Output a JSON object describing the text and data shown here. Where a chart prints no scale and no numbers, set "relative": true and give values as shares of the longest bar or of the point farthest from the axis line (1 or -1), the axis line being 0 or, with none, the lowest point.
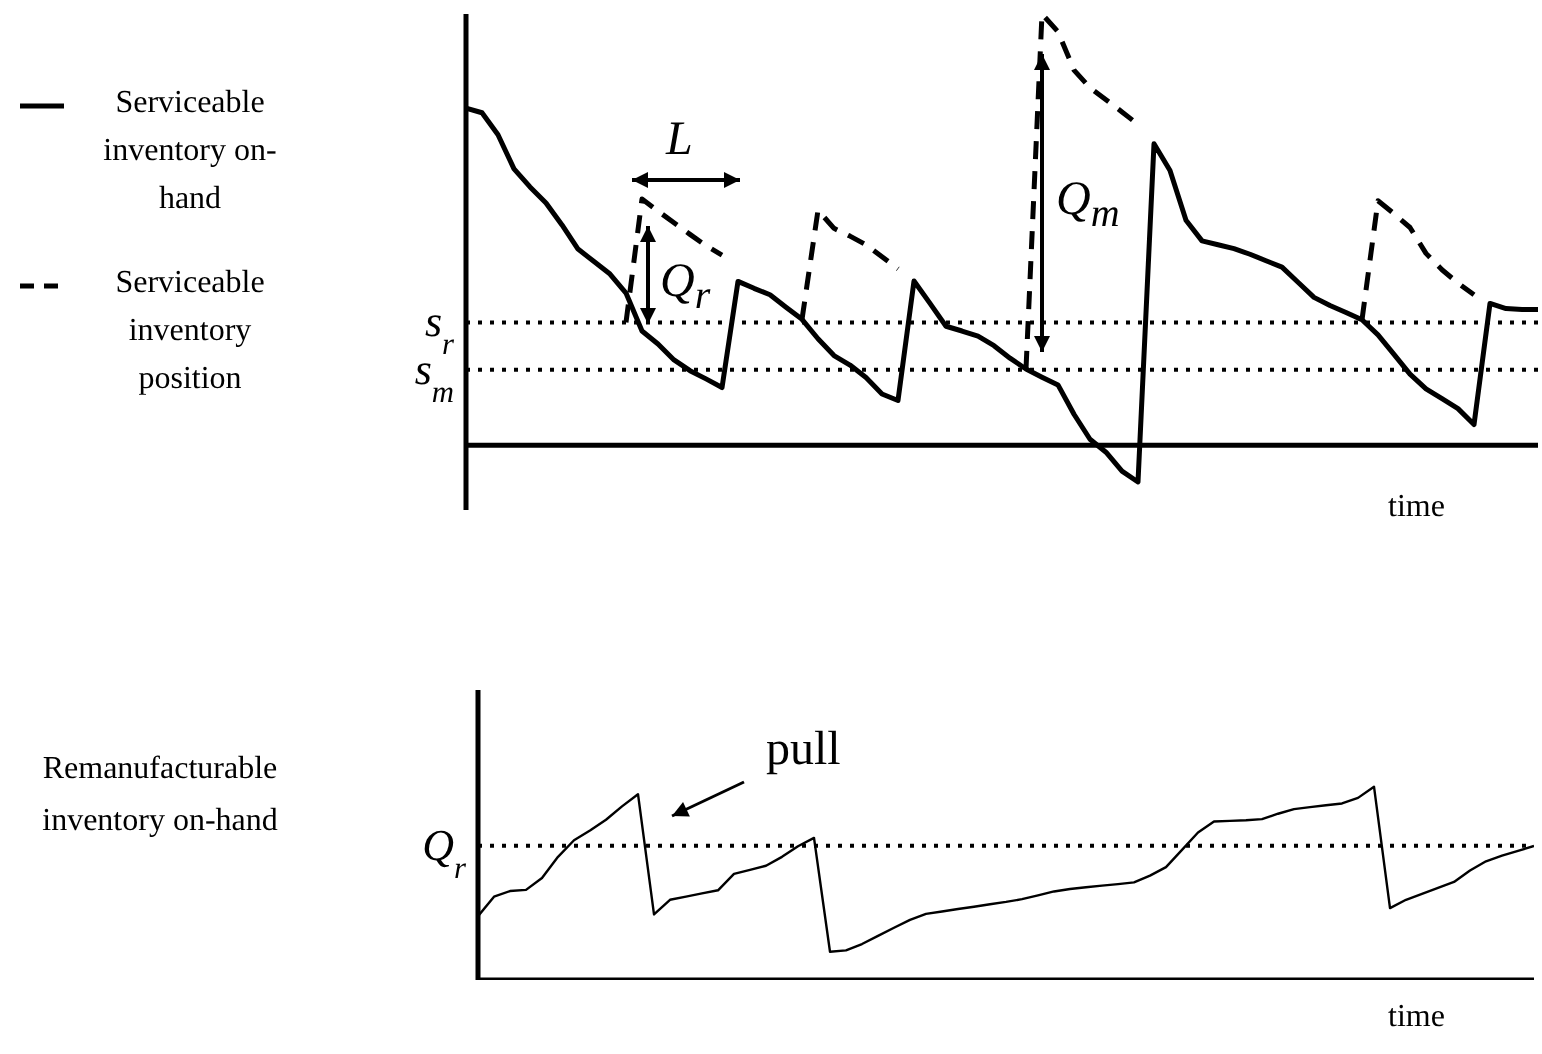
{
  "chart_data": [
    {
      "type": "line",
      "relative": true,
      "tick_labels": false,
      "xlabel": "time",
      "legend": "left",
      "marker": "none",
      "categories": [
        null,
        null,
        null,
        null,
        null,
        null,
        null,
        null,
        null,
        null,
        null,
        null,
        null,
        null,
        null,
        null,
        null,
        null,
        null,
        null,
        null,
        null,
        null,
        null,
        null,
        null,
        null,
        null,
        null,
        null,
        null,
        null,
        null,
        null,
        null,
        null,
        null,
        null,
        null,
        null,
        null,
        null,
        null,
        null,
        null,
        null,
        null,
        null,
        null,
        null,
        null,
        null,
        null,
        null,
        null,
        null,
        null,
        null,
        null,
        null,
        null,
        null,
        null,
        null,
        null,
        null,
        null,
        null
      ],
      "series": [
        {
          "name": "Serviceable inventory on-hand",
          "color": "#000000",
          "line_style": "solid",
          "values": [
            0.782,
            0.771,
            0.72,
            0.641,
            0.599,
            0.562,
            0.511,
            0.455,
            0.426,
            0.397,
            0.353,
            0.265,
            0.235,
            0.198,
            0.173,
            0.154,
            0.134,
            0.38,
            0.364,
            0.349,
            0.32,
            0.292,
            0.247,
            0.208,
            0.186,
            0.157,
            0.119,
            0.104,
            0.381,
            0.329,
            0.276,
            0.265,
            0.253,
            0.231,
            0.202,
            0.177,
            0.158,
            0.14,
            0.072,
            0.014,
            -0.016,
            -0.06,
            -0.085,
            0.699,
            0.637,
            0.522,
            0.474,
            0.465,
            0.456,
            0.443,
            0.428,
            0.413,
            0.378,
            0.343,
            0.324,
            0.308,
            0.291,
            0.256,
            0.211,
            0.165,
            0.131,
            0.108,
            0.085,
            0.048,
            0.329,
            0.317,
            0.315,
            0.315
          ]
        },
        {
          "name": "Serviceable inventory position",
          "color": "#000000",
          "line_style": "dashed",
          "values": [
            null,
            null,
            null,
            null,
            null,
            null,
            null,
            null,
            null,
            null,
            0.285,
            0.571,
            0.543,
            0.516,
            0.489,
            0.463,
            0.441,
            null,
            null,
            null,
            null,
            0.292,
            0.545,
            0.503,
            0.485,
            0.465,
            0.437,
            0.409,
            null,
            null,
            null,
            null,
            null,
            null,
            null,
            0.177,
            1,
            0.959,
            0.87,
            0.829,
            0.801,
            0.773,
            0.744,
            null,
            null,
            null,
            null,
            null,
            null,
            null,
            null,
            null,
            null,
            null,
            null,
            null,
            0.291,
            0.567,
            0.537,
            0.505,
            0.445,
            0.407,
            0.376,
            0.349,
            null,
            null,
            null,
            null
          ]
        }
      ],
      "ref_lines": [
        {
          "axis": "y",
          "value": 0.285,
          "label": "s$_{r}$",
          "line_style": "dotted"
        },
        {
          "axis": "y",
          "value": 0.175,
          "label": "s$_{m}$",
          "line_style": "dotted"
        }
      ],
      "annotations": [
        "L",
        "Q$_{r}$",
        "Q$_{m}$"
      ]
    },
    {
      "type": "line",
      "relative": true,
      "tick_labels": false,
      "xlabel": "time",
      "ylabel": "Remanufacturable inventory on-hand",
      "marker": "none",
      "categories": [
        null,
        null,
        null,
        null,
        null,
        null,
        null,
        null,
        null,
        null,
        null,
        null,
        null,
        null,
        null,
        null,
        null,
        null,
        null,
        null,
        null,
        null,
        null,
        null,
        null,
        null,
        null,
        null,
        null,
        null,
        null,
        null,
        null,
        null,
        null,
        null,
        null,
        null,
        null,
        null,
        null,
        null,
        null,
        null,
        null,
        null,
        null,
        null,
        null,
        null,
        null,
        null,
        null,
        null,
        null,
        null,
        null,
        null,
        null,
        null,
        null,
        null,
        null,
        null,
        null,
        null,
        null
      ],
      "series": [
        {
          "color": "#000000",
          "line_style": "solid",
          "values": [
            0.33,
            0.431,
            0.46,
            0.466,
            0.528,
            0.637,
            0.723,
            0.773,
            0.829,
            0.898,
            0.961,
            0.339,
            0.415,
            0.431,
            0.448,
            0.464,
            0.549,
            0.57,
            0.591,
            0.637,
            0.692,
            0.735,
            0.146,
            0.153,
            0.186,
            0.228,
            0.27,
            0.311,
            0.342,
            0.354,
            0.367,
            0.379,
            0.392,
            0.404,
            0.418,
            0.438,
            0.458,
            0.471,
            0.48,
            0.488,
            0.496,
            0.505,
            0.54,
            0.584,
            0.673,
            0.763,
            0.82,
            0.823,
            0.826,
            0.832,
            0.86,
            0.884,
            0.894,
            0.904,
            0.913,
            0.942,
            1,
            0.372,
            0.415,
            0.446,
            0.476,
            0.507,
            0.566,
            0.614,
            0.643,
            0.668,
            0.693
          ]
        }
      ],
      "ref_lines": [
        {
          "axis": "y",
          "value": 0.694,
          "label": "Q$_{r}$",
          "line_style": "dotted"
        }
      ],
      "annotations": [
        "pull"
      ]
    }
  ]
}
